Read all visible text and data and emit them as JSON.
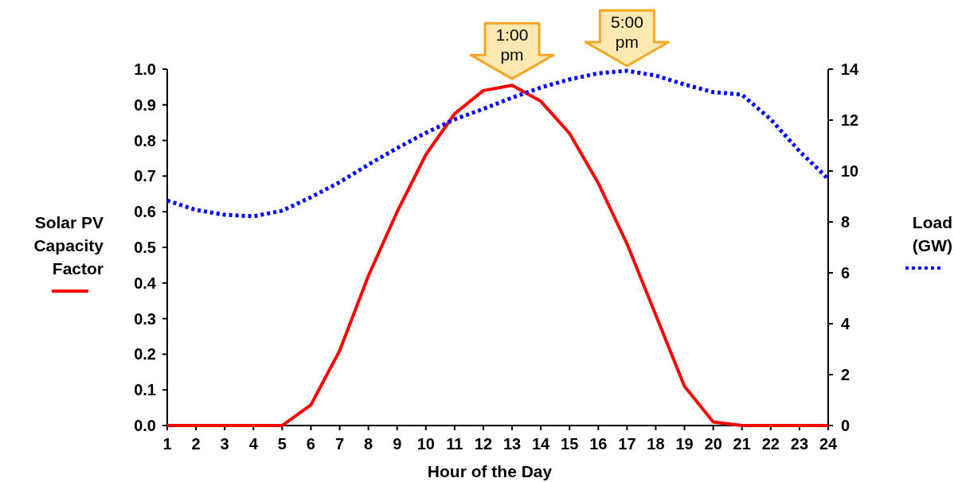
{
  "chart_data": {
    "type": "line",
    "xlabel": "Hour of the Day",
    "ylabel": "Solar PV Capacity Factor",
    "y2label": "Load (GW)",
    "x": [
      1,
      2,
      3,
      4,
      5,
      6,
      7,
      8,
      9,
      10,
      11,
      12,
      13,
      14,
      15,
      16,
      17,
      18,
      19,
      20,
      21,
      22,
      23,
      24
    ],
    "series": [
      {
        "color": "#ff0000",
        "line_style": "solid",
        "values": [
          0,
          0,
          0,
          0,
          0,
          0.058,
          0.21,
          0.42,
          0.6,
          0.76,
          0.875,
          0.94,
          0.955,
          0.91,
          0.82,
          0.68,
          0.51,
          0.31,
          0.11,
          0.01,
          0,
          0,
          0,
          0
        ]
      },
      {
        "color": "#0000ff",
        "line_style": "dotted",
        "axis": "y2",
        "values": [
          8.84,
          8.47,
          8.28,
          8.22,
          8.44,
          8.97,
          9.56,
          10.25,
          10.9,
          11.5,
          12.03,
          12.44,
          12.88,
          13.28,
          13.6,
          13.84,
          13.94,
          13.75,
          13.4,
          13.1,
          13.0,
          12.03,
          10.78,
          9.69
        ]
      }
    ],
    "xlim": [
      1,
      24
    ],
    "xticks": [
      1,
      2,
      3,
      4,
      5,
      6,
      7,
      8,
      9,
      10,
      11,
      12,
      13,
      14,
      15,
      16,
      17,
      18,
      19,
      20,
      21,
      22,
      23,
      24
    ],
    "ylim": [
      0,
      1
    ],
    "yticks": [
      {
        "value": 0,
        "label": "0.0"
      },
      0.1,
      0.2,
      0.3,
      0.4,
      0.5,
      0.6,
      0.7,
      0.8,
      0.9,
      {
        "value": 1,
        "label": "1.0"
      }
    ],
    "y2lim": [
      0,
      14
    ],
    "y2ticks": [
      0,
      2,
      4,
      6,
      8,
      10,
      12,
      14
    ],
    "annotations": [
      {
        "text": "1:00 pm",
        "x": 13,
        "y": 0.955
      },
      "5:00 pm"
    ],
    "grid": false
  }
}
